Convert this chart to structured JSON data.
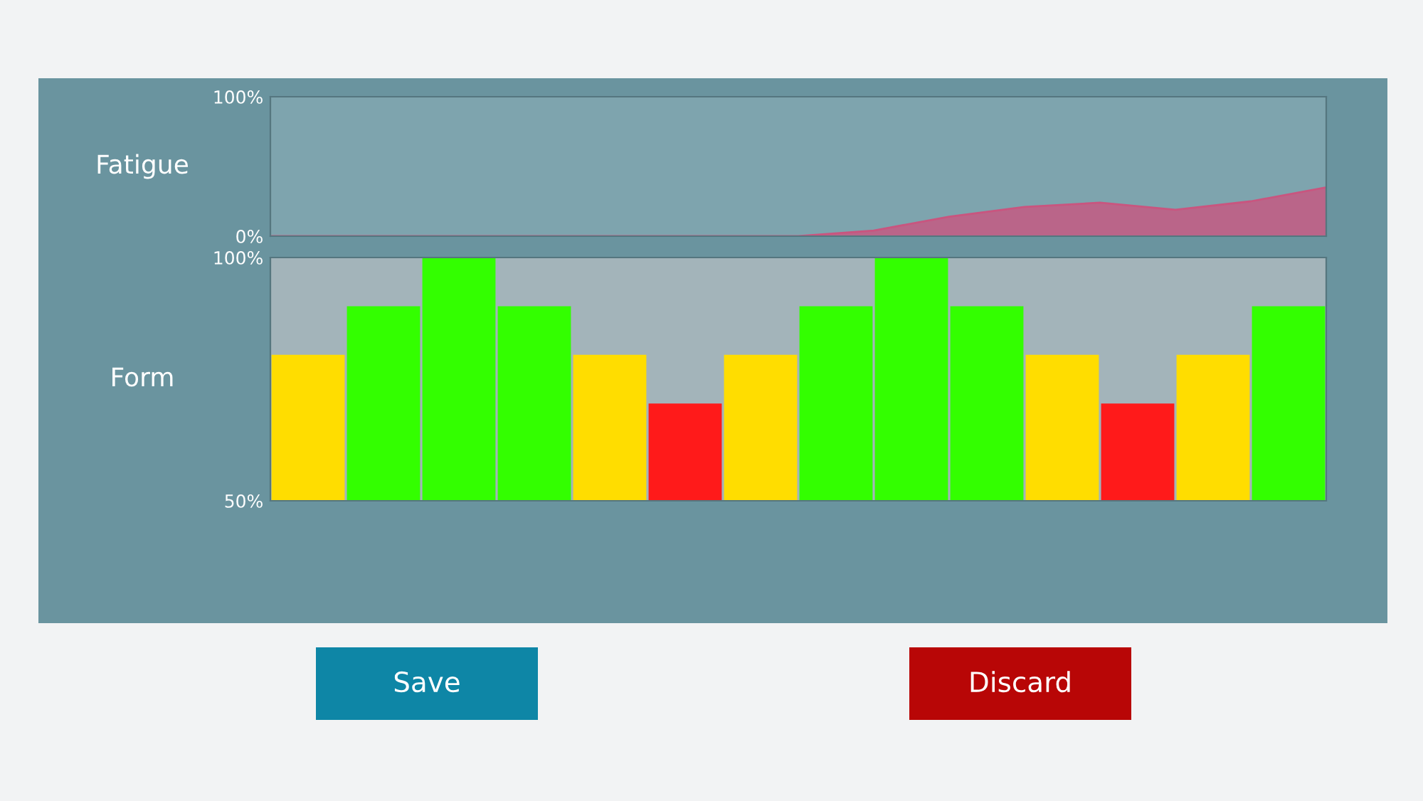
{
  "chart_data": [
    {
      "type": "area",
      "ylabel": "Fatigue",
      "categories": [
        null,
        null,
        null,
        null,
        null,
        null,
        null,
        null,
        null,
        null,
        null,
        null,
        null,
        null,
        null
      ],
      "series": [
        {
          "color": "#c9557f",
          "values": [
            0,
            0,
            0,
            0,
            0,
            0,
            0,
            0,
            4,
            14,
            21,
            24,
            19,
            25,
            35
          ]
        }
      ],
      "ylim": [
        0,
        100
      ],
      "yticks": [
        {
          "value": 0,
          "label": "0%"
        },
        {
          "value": 100,
          "label": "100%"
        }
      ],
      "tick_labels": "y",
      "legend": false
    },
    {
      "type": "bar",
      "ylabel": "Form",
      "categories": [
        null,
        null,
        null,
        null,
        null,
        null,
        null,
        null,
        null,
        null,
        null,
        null,
        null,
        null
      ],
      "values": [
        80,
        90,
        100,
        90,
        80,
        70,
        80,
        90,
        100,
        90,
        80,
        70,
        80,
        90
      ],
      "colors": [
        "#ffdd00",
        "#33ff00",
        "#33ff00",
        "#33ff00",
        "#ffdd00",
        "#ff1a1a",
        "#ffdd00",
        "#33ff00",
        "#33ff00",
        "#33ff00",
        "#ffdd00",
        "#ff1a1a",
        "#ffdd00",
        "#33ff00"
      ],
      "ylim": [
        50,
        100
      ],
      "yticks": [
        {
          "value": 50,
          "label": "50%"
        },
        {
          "value": 100,
          "label": "100%"
        }
      ],
      "tick_labels": "y",
      "legend": false,
      "annotations": [
        "Save",
        "Discard"
      ]
    }
  ]
}
